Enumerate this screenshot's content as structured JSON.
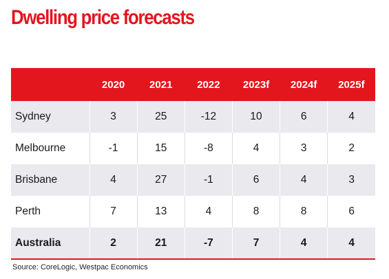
{
  "title": "Dwelling price forecasts",
  "source": "Source: CoreLogic, Westpac Economics",
  "chart_data": {
    "type": "table",
    "title": "Dwelling price forecasts",
    "columns": [
      "",
      "2020",
      "2021",
      "2022",
      "2023f",
      "2024f",
      "2025f"
    ],
    "rows": [
      {
        "label": "Sydney",
        "values": [
          "3",
          "25",
          "-12",
          "10",
          "6",
          "4"
        ]
      },
      {
        "label": "Melbourne",
        "values": [
          "-1",
          "15",
          "-8",
          "4",
          "3",
          "2"
        ]
      },
      {
        "label": "Brisbane",
        "values": [
          "4",
          "27",
          "-1",
          "6",
          "4",
          "3"
        ]
      },
      {
        "label": "Perth",
        "values": [
          "7",
          "13",
          "4",
          "8",
          "8",
          "6"
        ]
      },
      {
        "label": "Australia",
        "values": [
          "2",
          "21",
          "-7",
          "7",
          "4",
          "4"
        ]
      }
    ]
  },
  "colors": {
    "accent": "#e3161d",
    "row_band": "#e9e9ee"
  }
}
